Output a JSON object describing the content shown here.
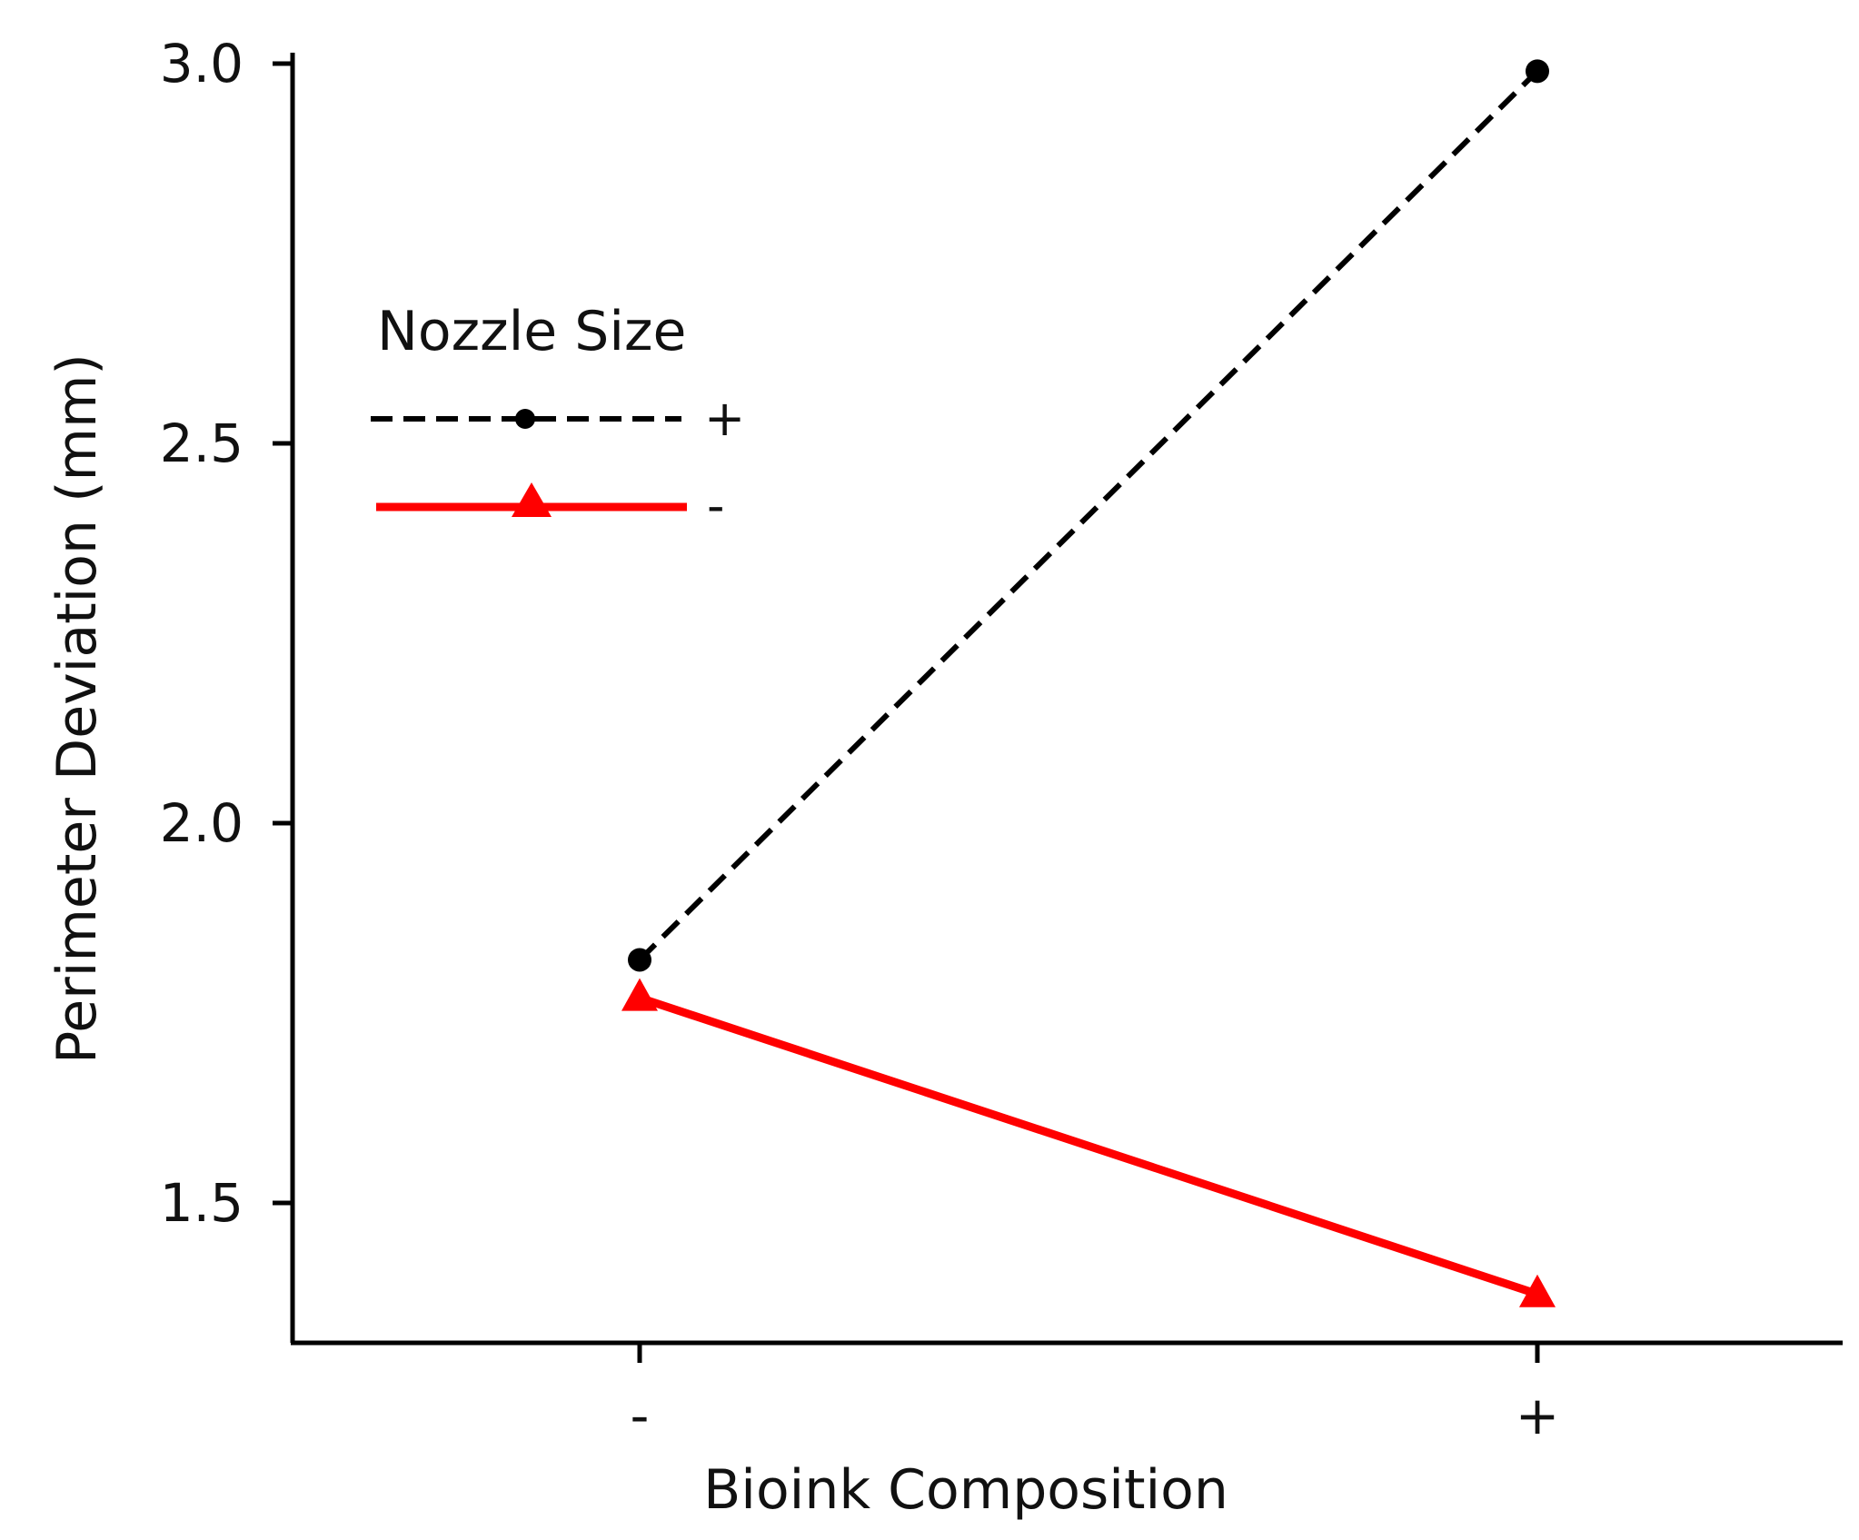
{
  "chart_data": {
    "type": "line",
    "title": "",
    "xlabel": "Bioink Composition",
    "ylabel": "Perimeter Deviation (mm)",
    "categories": [
      "-",
      "+"
    ],
    "y_ticks": [
      "1.5",
      "2.0",
      "2.5",
      "3.0"
    ],
    "ylim": [
      1.31,
      3.0
    ],
    "grid": false,
    "legend": {
      "title": "Nozzle Size",
      "placement": "upper-left"
    },
    "series": [
      {
        "name": "+",
        "values": [
          1.82,
          2.99
        ],
        "color": "#000000",
        "line_style": "dashed",
        "marker": "circle"
      },
      {
        "name": "-",
        "values": [
          1.77,
          1.38
        ],
        "color": "#ff0000",
        "line_style": "solid",
        "marker": "triangle"
      }
    ]
  }
}
